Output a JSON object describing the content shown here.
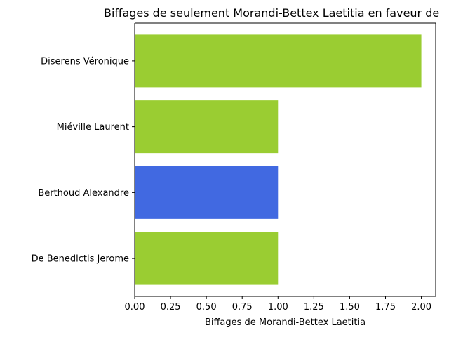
{
  "chart_data": {
    "type": "bar",
    "orientation": "horizontal",
    "title": "Biffages de seulement Morandi-Bettex Laetitia en faveur de",
    "xlabel": "Biffages de Morandi-Bettex Laetitia",
    "ylabel": "",
    "categories": [
      "Diserens Véronique",
      "Miéville Laurent",
      "Berthoud Alexandre",
      "De Benedictis Jerome"
    ],
    "values": [
      2,
      1,
      1,
      1
    ],
    "bar_colors": [
      "#9acd32",
      "#9acd32",
      "#4169e1",
      "#9acd32"
    ],
    "xlim": [
      0,
      2.1
    ],
    "xticks": [
      0.0,
      0.25,
      0.5,
      0.75,
      1.0,
      1.25,
      1.5,
      1.75,
      2.0
    ],
    "xtick_labels": [
      "0.00",
      "0.25",
      "0.50",
      "0.75",
      "1.00",
      "1.25",
      "1.50",
      "1.75",
      "2.00"
    ],
    "grid": false,
    "legend": "none"
  }
}
